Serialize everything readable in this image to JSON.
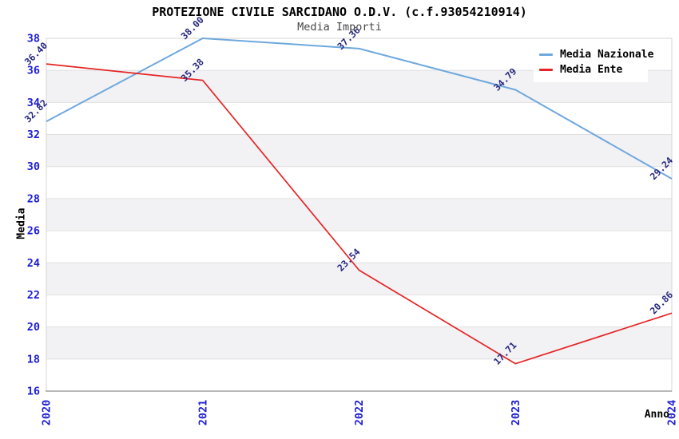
{
  "chart_data": {
    "type": "line",
    "title": "PROTEZIONE CIVILE SARCIDANO O.D.V. (c.f.93054210914)",
    "subtitle": "Media Importi",
    "xlabel": "Anno",
    "ylabel": "Media",
    "x_categories": [
      "2020",
      "2021",
      "2022",
      "2023",
      "2024"
    ],
    "ylim": [
      16,
      38
    ],
    "ytick_step": 2,
    "ytick_labels": [
      "16",
      "18",
      "20",
      "22",
      "24",
      "26",
      "28",
      "30",
      "32",
      "34",
      "36",
      "38"
    ],
    "grid": "alternating-horizontal-bands",
    "legend_position": "top-right-inside",
    "series": [
      {
        "name": "Media Nazionale",
        "color": "#6fa8dc",
        "values": [
          32.82,
          38.0,
          37.36,
          34.79,
          29.24
        ]
      },
      {
        "name": "Media Ente",
        "color": "#e62424",
        "values": [
          36.4,
          35.38,
          23.54,
          17.71,
          20.86
        ]
      }
    ],
    "data_labels_shown": true,
    "colors": {
      "tick_label": "#1e1ed2",
      "data_label": "#282880",
      "band": "#f2f2f4",
      "gridline": "#e0e0e0",
      "plot_border": "#d6d6d6",
      "x_axis_line": "#8f8f8f",
      "title": "#000000",
      "subtitle": "#474747",
      "background": "#ffffff"
    }
  }
}
